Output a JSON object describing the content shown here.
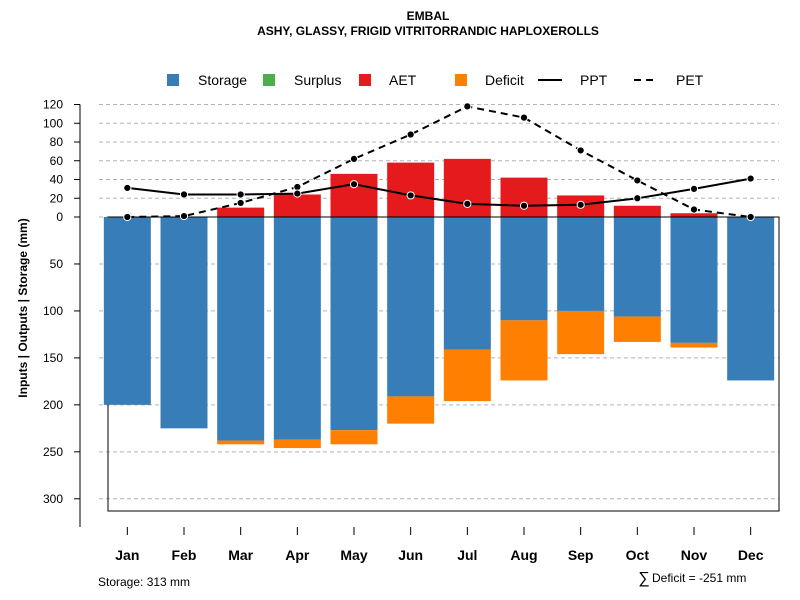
{
  "chart_data": {
    "type": "bar",
    "title": "EMBAL",
    "subtitle": "ASHY, GLASSY, FRIGID VITRITORRANDIC HAPLOXEROLLS",
    "ylabel": "Inputs | Outputs | Storage    (mm)",
    "categories": [
      "Jan",
      "Feb",
      "Mar",
      "Apr",
      "May",
      "Jun",
      "Jul",
      "Aug",
      "Sep",
      "Oct",
      "Nov",
      "Dec"
    ],
    "upper_ticks": [
      "0",
      "20",
      "40",
      "60",
      "80",
      "100",
      "120"
    ],
    "lower_ticks": [
      "50",
      "100",
      "150",
      "200",
      "250",
      "300"
    ],
    "upper_ylim": [
      0,
      120
    ],
    "lower_ylim": [
      0,
      313
    ],
    "legend": [
      {
        "name": "Storage",
        "type": "box",
        "color": "#377EB8"
      },
      {
        "name": "Surplus",
        "type": "box",
        "color": "#4DAF4A"
      },
      {
        "name": "AET",
        "type": "box",
        "color": "#E41A1C"
      },
      {
        "name": "Deficit",
        "type": "box",
        "color": "#FF7F00"
      },
      {
        "name": "PPT",
        "type": "solid-line",
        "color": "#000000"
      },
      {
        "name": "PET",
        "type": "dashed-line",
        "color": "#000000"
      }
    ],
    "series": [
      {
        "name": "AET",
        "color": "#E41A1C",
        "values": [
          0,
          0,
          10,
          24,
          46,
          58,
          62,
          42,
          23,
          12,
          4,
          0
        ]
      },
      {
        "name": "Storage",
        "color": "#377EB8",
        "values": [
          200,
          225,
          238,
          237,
          227,
          191,
          141,
          110,
          100,
          106,
          134,
          174
        ]
      },
      {
        "name": "Deficit",
        "color": "#FF7F00",
        "values": [
          0,
          0,
          4,
          9,
          15,
          29,
          55,
          64,
          46,
          27,
          5,
          0
        ]
      },
      {
        "name": "PPT",
        "color": "#000000",
        "values": [
          31,
          24,
          24,
          25,
          35,
          23,
          14,
          12,
          13,
          20,
          30,
          41
        ]
      },
      {
        "name": "PET",
        "color": "#000000",
        "values": [
          0,
          1,
          15,
          32,
          62,
          88,
          118,
          106,
          71,
          39,
          8,
          0
        ]
      }
    ]
  },
  "footer": {
    "storage": "Storage: 313 mm",
    "deficit_symbol": "∑",
    "deficit": "Deficit = -251 mm"
  }
}
